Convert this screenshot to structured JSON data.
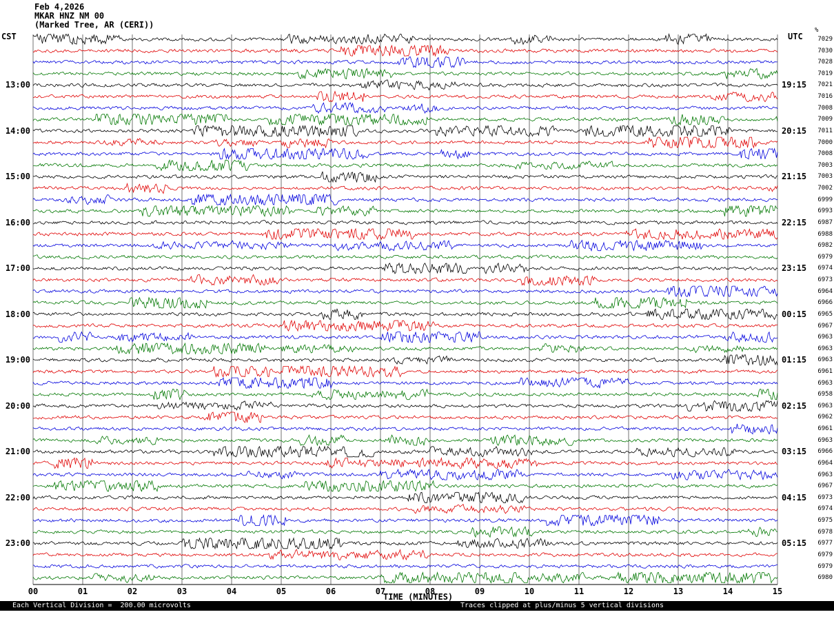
{
  "header": {
    "date": "Feb 4,2026",
    "station": "MKAR HNZ NM 00",
    "location": "(Marked Tree, AR (CERI))"
  },
  "axes": {
    "left_tz": "CST",
    "right_tz": "UTC",
    "x_title": "TIME (MINUTES)",
    "x_ticks": [
      "00",
      "01",
      "02",
      "03",
      "04",
      "05",
      "06",
      "07",
      "08",
      "09",
      "10",
      "11",
      "12",
      "13",
      "14",
      "15"
    ]
  },
  "footer": {
    "scale_note": "Each Vertical Division =  200.00 microvolts",
    "clip_note": "Traces clipped at plus/minus 5 vertical divisions",
    "top_right_marker": "%"
  },
  "colors": {
    "trace_cycle": [
      "#000000",
      "#e00000",
      "#0000dd",
      "#007700"
    ],
    "grid": "#707070",
    "axis": "#000000",
    "banner_bg": "#000000",
    "banner_fg": "#ffffff"
  },
  "chart_data": {
    "type": "line",
    "title": "Helicorder seismogram MKAR HNZ NM 00 (Marked Tree, AR (CERI)) Feb 4,2026",
    "x_range_minutes": [
      0,
      15
    ],
    "row_count": 48,
    "minutes_per_row": 15,
    "left_labels": [
      {
        "row": 4,
        "text": "13:00"
      },
      {
        "row": 8,
        "text": "14:00"
      },
      {
        "row": 12,
        "text": "15:00"
      },
      {
        "row": 16,
        "text": "16:00"
      },
      {
        "row": 20,
        "text": "17:00"
      },
      {
        "row": 24,
        "text": "18:00"
      },
      {
        "row": 28,
        "text": "19:00"
      },
      {
        "row": 32,
        "text": "20:00"
      },
      {
        "row": 36,
        "text": "21:00"
      },
      {
        "row": 40,
        "text": "22:00"
      },
      {
        "row": 44,
        "text": "23:00"
      }
    ],
    "right_labels": [
      {
        "row": 4,
        "text": "19:15"
      },
      {
        "row": 8,
        "text": "20:15"
      },
      {
        "row": 12,
        "text": "21:15"
      },
      {
        "row": 16,
        "text": "22:15"
      },
      {
        "row": 20,
        "text": "23:15"
      },
      {
        "row": 24,
        "text": "00:15"
      },
      {
        "row": 28,
        "text": "01:15"
      },
      {
        "row": 32,
        "text": "02:15"
      },
      {
        "row": 36,
        "text": "03:15"
      },
      {
        "row": 40,
        "text": "04:15"
      },
      {
        "row": 44,
        "text": "05:15"
      }
    ],
    "trace_values": [
      7029,
      7030,
      7028,
      7019,
      7021,
      7016,
      7008,
      7009,
      7011,
      7000,
      7008,
      7003,
      7003,
      7002,
      6999,
      6993,
      6987,
      6988,
      6982,
      6979,
      6974,
      6973,
      6964,
      6966,
      6965,
      6967,
      6963,
      6963,
      6963,
      6961,
      6963,
      6958,
      6963,
      6962,
      6961,
      6963,
      6966,
      6964,
      6963,
      6967,
      6973,
      6974,
      6975,
      6978,
      6977,
      6979,
      6979,
      6980
    ]
  }
}
